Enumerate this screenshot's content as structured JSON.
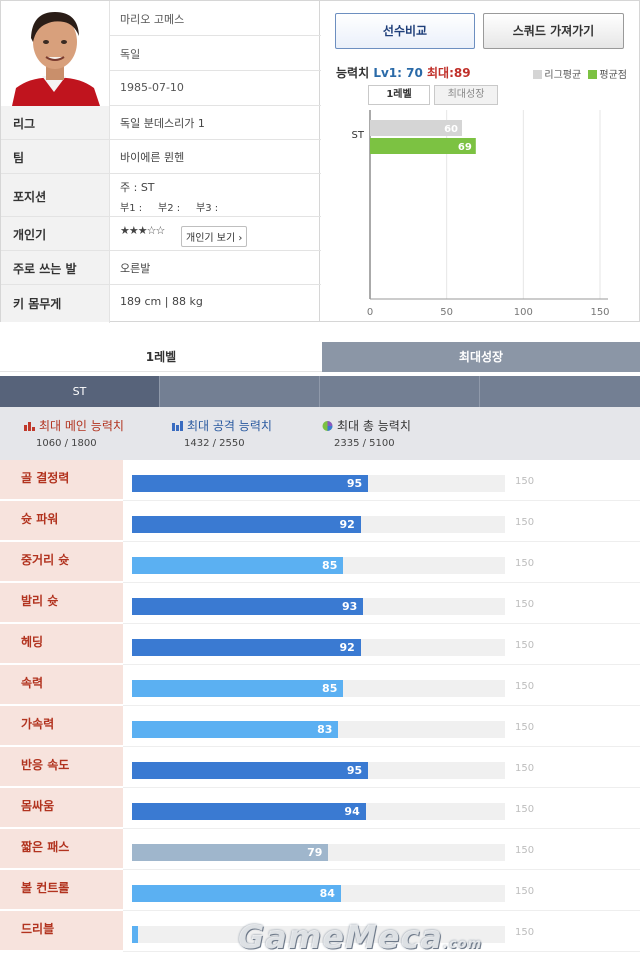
{
  "player": {
    "name": "마리오 고메스",
    "nation": "독일",
    "birth": "1985-07-10",
    "rows": [
      {
        "label": "리그",
        "value": "독일 분데스리가 1"
      },
      {
        "label": "팀",
        "value": "바이에른 뮌헨"
      },
      {
        "label": "포지션",
        "value": "주 : ST",
        "value2": "부1 :     부2 :     부3 :"
      },
      {
        "label": "개인기",
        "value": "★★★☆☆",
        "button": "개인기 보기 ›"
      },
      {
        "label": "주로 쓰는 발",
        "value": "오른발"
      },
      {
        "label": "키 몸무게",
        "value": "189 cm | 88 kg"
      }
    ]
  },
  "buttons": {
    "compare": "선수비교",
    "squad": "스쿼드 가져가기"
  },
  "ability": {
    "title_prefix": "능력치",
    "lv": "Lv1: 70",
    "max": "최대:89",
    "legend_league": "리그평균",
    "legend_avg": "평균점",
    "tab_level": "1레벨",
    "tab_growth": "최대성장"
  },
  "colors": {
    "league": "#d5d5d5",
    "avg": "#7cc242",
    "bar_dark": "#3a7ad2",
    "bar_light": "#5bb0f2",
    "bar_grey": "#9fb6cc"
  },
  "chart_data": {
    "type": "bar",
    "categories": [
      "ST"
    ],
    "series": [
      {
        "name": "리그평균",
        "values": [
          60
        ]
      },
      {
        "name": "평균점",
        "values": [
          69
        ]
      }
    ],
    "xlim": [
      0,
      150
    ],
    "xticks": [
      "0",
      "50",
      "100",
      "150"
    ]
  },
  "tabs": {
    "level1": "1레벨",
    "maxgrowth": "최대성장"
  },
  "position_tab": "ST",
  "summary": [
    {
      "title": "최대 메인 능력치",
      "value": "1060 / 1800"
    },
    {
      "title": "최대 공격 능력치",
      "value": "1432 / 2550"
    },
    {
      "title": "최대 총 능력치",
      "value": "2335 / 5100"
    }
  ],
  "stats": [
    {
      "label": "골 결정력",
      "value": 95,
      "color": "#3a7ad2"
    },
    {
      "label": "슛 파워",
      "value": 92,
      "color": "#3a7ad2"
    },
    {
      "label": "중거리 슛",
      "value": 85,
      "color": "#5bb0f2"
    },
    {
      "label": "발리 슛",
      "value": 93,
      "color": "#3a7ad2"
    },
    {
      "label": "헤딩",
      "value": 92,
      "color": "#3a7ad2"
    },
    {
      "label": "속력",
      "value": 85,
      "color": "#5bb0f2"
    },
    {
      "label": "가속력",
      "value": 83,
      "color": "#5bb0f2"
    },
    {
      "label": "반응 속도",
      "value": 95,
      "color": "#3a7ad2"
    },
    {
      "label": "몸싸움",
      "value": 94,
      "color": "#3a7ad2"
    },
    {
      "label": "짧은 패스",
      "value": 79,
      "color": "#9fb6cc"
    },
    {
      "label": "볼 컨트롤",
      "value": 84,
      "color": "#5bb0f2"
    },
    {
      "label": "드리블",
      "value": 0,
      "color": "#5bb0f2"
    }
  ],
  "stat_max": "150",
  "watermark": "GameMeca",
  "watermark_suffix": ".com"
}
